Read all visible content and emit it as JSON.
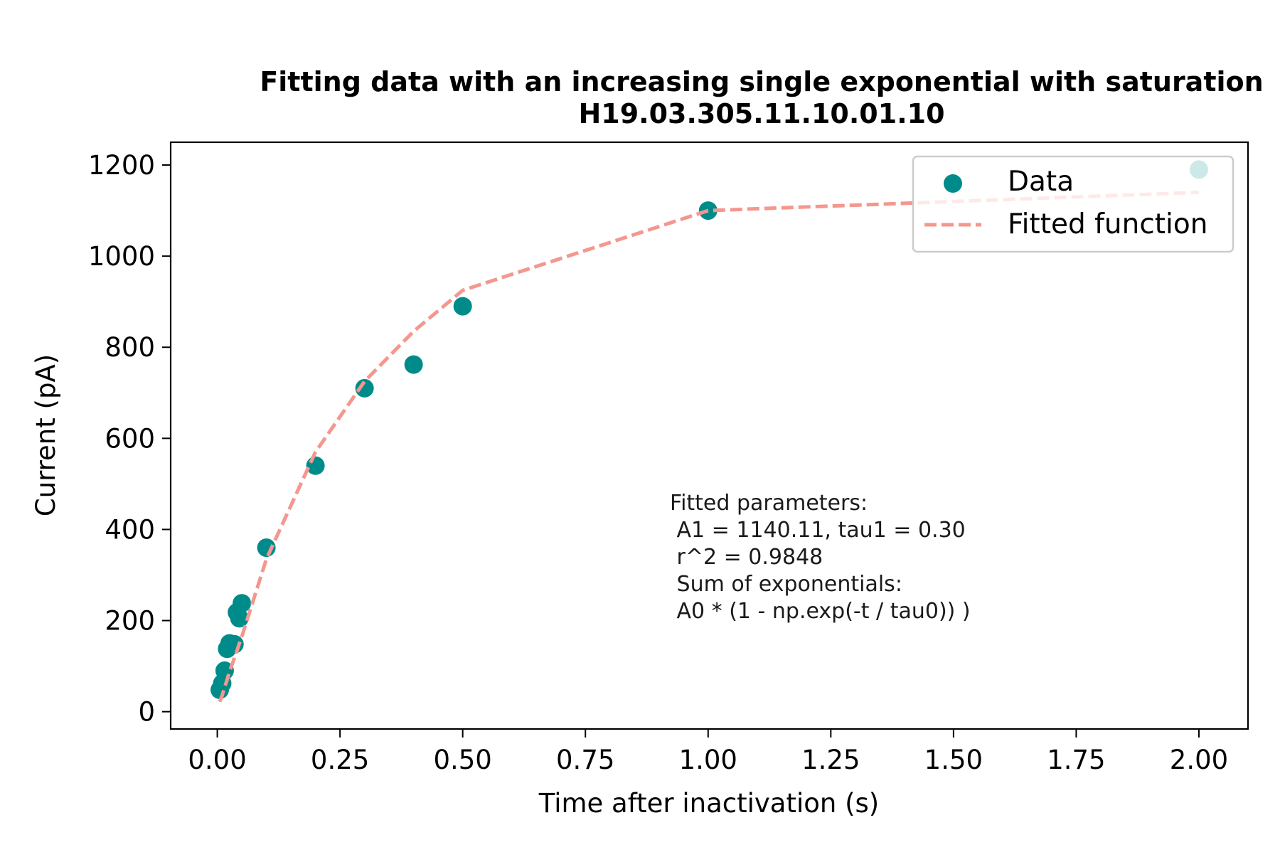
{
  "chart_data": {
    "type": "scatter",
    "title": "Fitting data with an increasing single exponential with saturation",
    "subtitle": "H19.03.305.11.10.01.10",
    "xlabel": "Time after inactivation (s)",
    "ylabel": "Current (pA)",
    "xlim": [
      -0.095,
      2.1
    ],
    "ylim": [
      -38,
      1250
    ],
    "xticks": [
      0.0,
      0.25,
      0.5,
      0.75,
      1.0,
      1.25,
      1.5,
      1.75,
      2.0
    ],
    "xtick_labels": [
      "0.00",
      "0.25",
      "0.50",
      "0.75",
      "1.00",
      "1.25",
      "1.50",
      "1.75",
      "2.00"
    ],
    "yticks": [
      0,
      200,
      400,
      600,
      800,
      1000,
      1200
    ],
    "ytick_labels": [
      "0",
      "200",
      "400",
      "600",
      "800",
      "1000",
      "1200"
    ],
    "grid": false,
    "legend_position": "top-right",
    "series": [
      {
        "name": "Data",
        "kind": "scatter",
        "color": "#008b8b",
        "x": [
          0.005,
          0.01,
          0.015,
          0.02,
          0.025,
          0.035,
          0.04,
          0.045,
          0.05,
          0.1,
          0.2,
          0.3,
          0.4,
          0.5,
          1.0,
          2.0
        ],
        "y": [
          48,
          62,
          90,
          138,
          150,
          148,
          218,
          205,
          238,
          360,
          540,
          710,
          762,
          890,
          1100,
          1190
        ]
      },
      {
        "name": "Fitted function",
        "kind": "line",
        "style": "dashed",
        "color": "#f4978e",
        "x": [
          0.005,
          0.01,
          0.015,
          0.02,
          0.025,
          0.035,
          0.04,
          0.045,
          0.05,
          0.1,
          0.2,
          0.3,
          0.4,
          0.5,
          1.0,
          2.0
        ],
        "y": [
          22,
          36,
          54,
          70,
          88,
          118,
          133,
          150,
          165,
          335,
          570,
          725,
          835,
          925,
          1100,
          1140
        ]
      }
    ],
    "annotation": [
      "Fitted parameters:",
      " A1 = 1140.11, tau1 = 0.30",
      " r^2 = 0.9848",
      " Sum of exponentials:",
      " A0 * (1 - np.exp(-t / tau0)) )"
    ]
  }
}
